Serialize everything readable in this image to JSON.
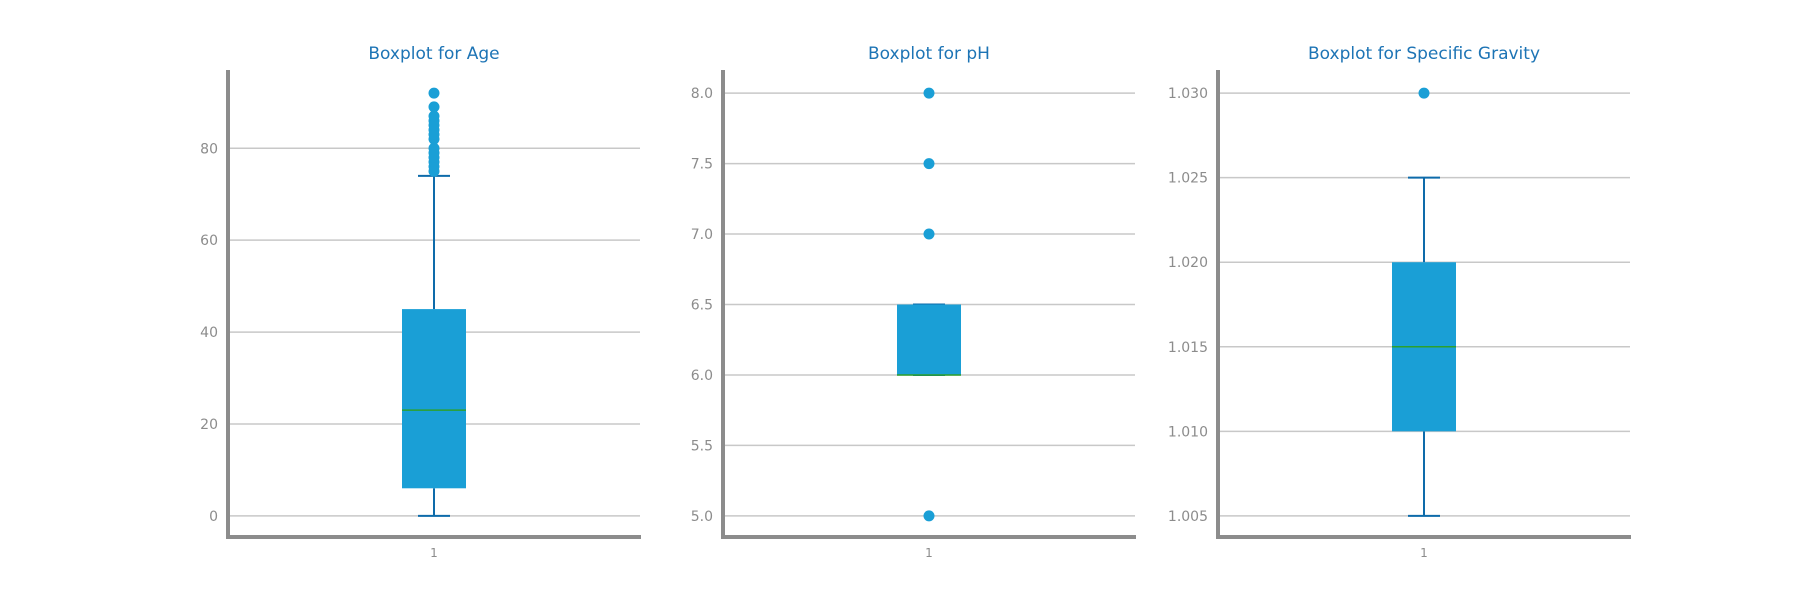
{
  "chart_data": [
    {
      "type": "box",
      "title": "Boxplot for Age",
      "xlabel": "",
      "ylabel": "",
      "category": "1",
      "ylim": [
        -4.6,
        96.6
      ],
      "yticks": [
        0,
        20,
        40,
        60,
        80
      ],
      "ytick_labels": [
        "0",
        "20",
        "40",
        "60",
        "80"
      ],
      "grid": true,
      "box": {
        "whisker_low": 0,
        "q1": 6,
        "median": 23,
        "q3": 45,
        "whisker_high": 74
      },
      "outliers": [
        75,
        76,
        77,
        78,
        79,
        80,
        82,
        83,
        84,
        85,
        86,
        87,
        89,
        92
      ]
    },
    {
      "type": "box",
      "title": "Boxplot for pH",
      "xlabel": "",
      "ylabel": "",
      "category": "1",
      "ylim": [
        4.85,
        8.15
      ],
      "yticks": [
        5.0,
        5.5,
        6.0,
        6.5,
        7.0,
        7.5,
        8.0
      ],
      "ytick_labels": [
        "5.0",
        "5.5",
        "6.0",
        "6.5",
        "7.0",
        "7.5",
        "8.0"
      ],
      "grid": true,
      "box": {
        "whisker_low": 6.0,
        "q1": 6.0,
        "median": 6.0,
        "q3": 6.5,
        "whisker_high": 6.5
      },
      "outliers": [
        5.0,
        7.0,
        7.5,
        8.0
      ]
    },
    {
      "type": "box",
      "title": "Boxplot for Specific Gravity",
      "xlabel": "",
      "ylabel": "",
      "category": "1",
      "ylim": [
        1.00375,
        1.03125
      ],
      "yticks": [
        1.005,
        1.01,
        1.015,
        1.02,
        1.025,
        1.03
      ],
      "ytick_labels": [
        "1.005",
        "1.010",
        "1.015",
        "1.020",
        "1.025",
        "1.030"
      ],
      "grid": true,
      "box": {
        "whisker_low": 1.005,
        "q1": 1.01,
        "median": 1.015,
        "q3": 1.02,
        "whisker_high": 1.025
      },
      "outliers": [
        1.03
      ]
    }
  ],
  "colors": {
    "box_fill": "#1A9FD6",
    "whisker": "#0E6BAA",
    "median": "#2CA02C",
    "outlier": "#1A9FD6",
    "title": "#1D74B5",
    "tick_label": "#8C8C8C",
    "axis": "#8C8C8C",
    "grid": "#C8C8C8"
  }
}
